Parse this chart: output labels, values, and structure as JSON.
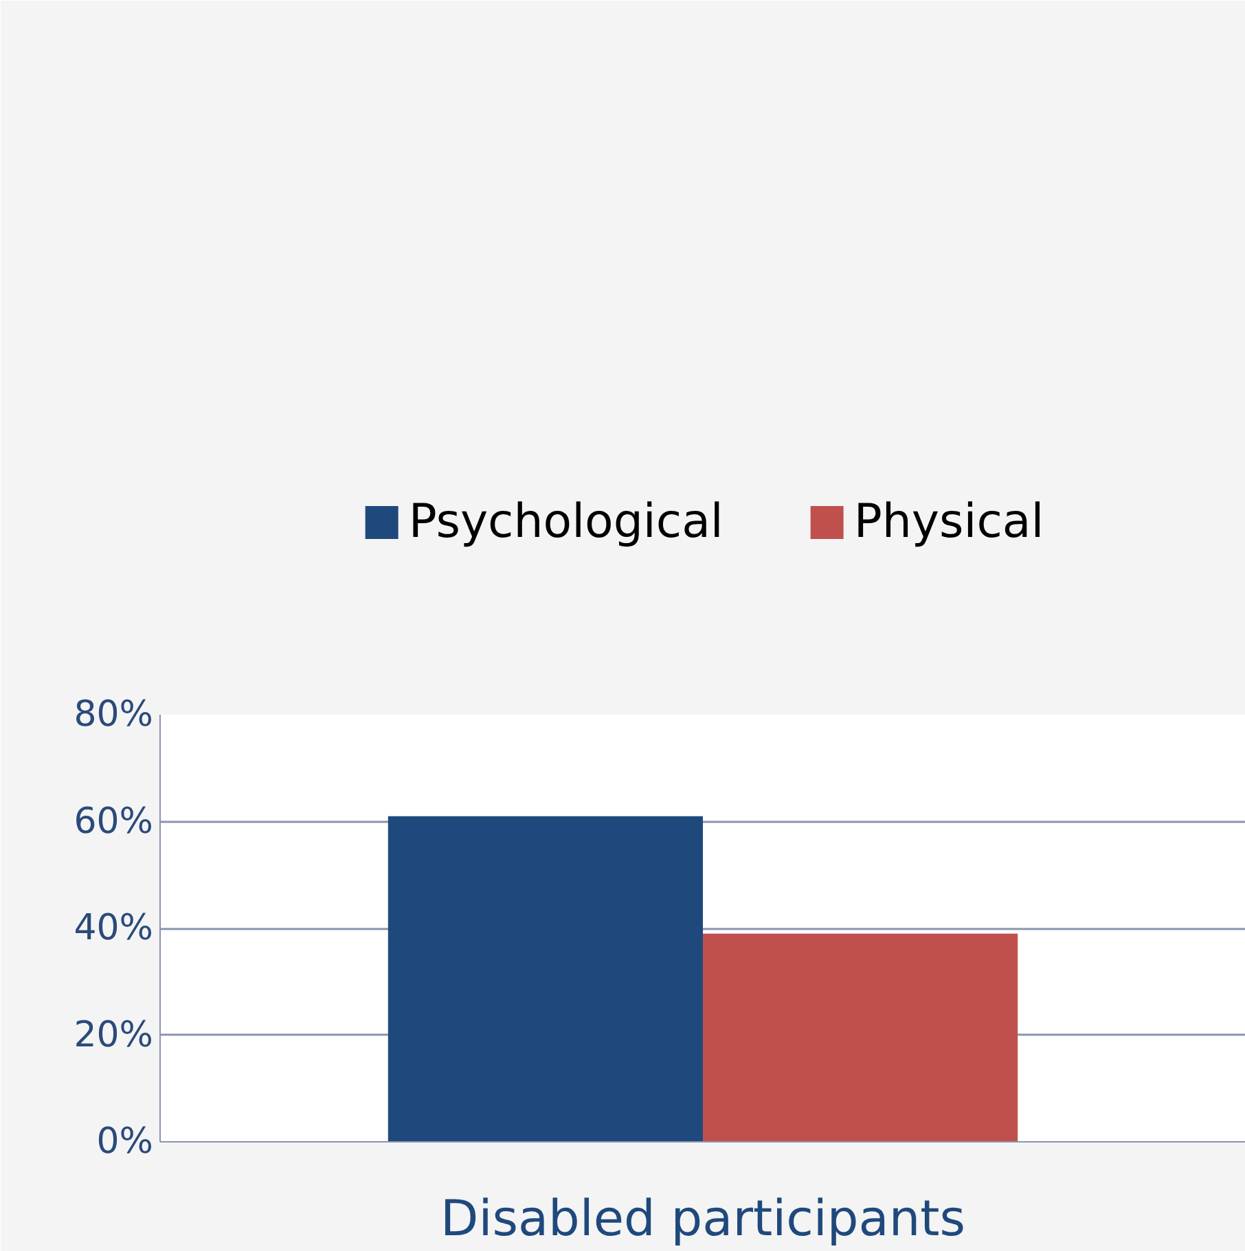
{
  "chart_data": {
    "type": "bar",
    "categories": [
      "Disabled participants"
    ],
    "series": [
      {
        "name": "Psychological",
        "color": "#1f497d",
        "values": [
          61
        ]
      },
      {
        "name": "Physical",
        "color": "#c0504d",
        "values": [
          39
        ]
      }
    ],
    "ylim": [
      0,
      80
    ],
    "yticks": [
      {
        "value": 0,
        "label": "0%"
      },
      {
        "value": 20,
        "label": "20%"
      },
      {
        "value": 40,
        "label": "40%"
      },
      {
        "value": 60,
        "label": "60%"
      },
      {
        "value": 80,
        "label": "80%"
      }
    ],
    "grid": "y",
    "legend": "top"
  }
}
